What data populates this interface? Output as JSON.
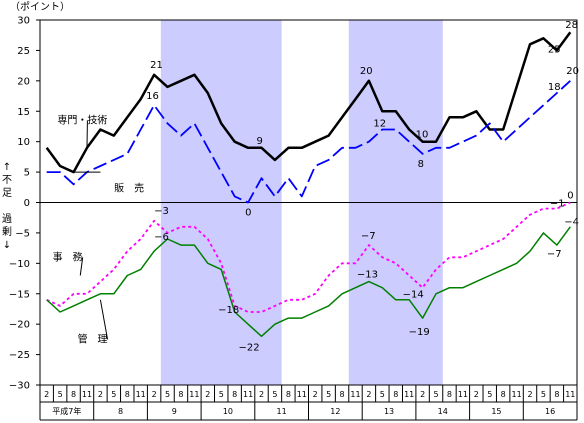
{
  "chart_data": {
    "type": "line",
    "unit_label": "（ポイント）",
    "y_axis_side_labels": {
      "top": [
        "↑",
        "不",
        "足"
      ],
      "bottom": [
        "過",
        "剰",
        "↓"
      ]
    },
    "ylim": [
      -30,
      30
    ],
    "y_ticks": [
      30,
      25,
      20,
      15,
      10,
      5,
      0,
      -5,
      -10,
      -15,
      -20,
      -25,
      -30
    ],
    "quarters": [
      "2",
      "5",
      "8",
      "11",
      "2",
      "5",
      "8",
      "11",
      "2",
      "5",
      "8",
      "11",
      "2",
      "5",
      "8",
      "11",
      "2",
      "5",
      "8",
      "11",
      "2",
      "5",
      "8",
      "11",
      "2",
      "5",
      "8",
      "11",
      "2",
      "5",
      "8",
      "11",
      "2",
      "5",
      "8",
      "11",
      "2",
      "5",
      "8",
      "11"
    ],
    "years": [
      {
        "label": "平成7年",
        "start": 0,
        "end": 3
      },
      {
        "label": "8",
        "start": 4,
        "end": 7
      },
      {
        "label": "9",
        "start": 8,
        "end": 11
      },
      {
        "label": "10",
        "start": 12,
        "end": 15
      },
      {
        "label": "11",
        "start": 16,
        "end": 19
      },
      {
        "label": "12",
        "start": 20,
        "end": 23
      },
      {
        "label": "13",
        "start": 24,
        "end": 27
      },
      {
        "label": "14",
        "start": 28,
        "end": 31
      },
      {
        "label": "15",
        "start": 32,
        "end": 35
      },
      {
        "label": "16",
        "start": 36,
        "end": 39
      }
    ],
    "shaded_ranges": [
      [
        9,
        18
      ],
      [
        23,
        30
      ]
    ],
    "series": [
      {
        "name": "専門・技術",
        "color": "#000000",
        "dash": "solid",
        "width": 2.5,
        "values": [
          9,
          6,
          5,
          9,
          12,
          11,
          14,
          17,
          21,
          19,
          20,
          21,
          18,
          13,
          10,
          9,
          9,
          7,
          9,
          9,
          10,
          11,
          14,
          17,
          20,
          15,
          15,
          12,
          10,
          10,
          14,
          14,
          15,
          12,
          12,
          19,
          26,
          27,
          25,
          28
        ]
      },
      {
        "name": "販　売",
        "color": "#0000ff",
        "dash": "longdash",
        "width": 1.8,
        "values": [
          5,
          5,
          3,
          5,
          6,
          7,
          8,
          12,
          16,
          13,
          11,
          13,
          9,
          5,
          1,
          0,
          4,
          1,
          4,
          1,
          6,
          7,
          9,
          9,
          10,
          12,
          12,
          10,
          8,
          9,
          9,
          10,
          11,
          13,
          10,
          12,
          14,
          16,
          18,
          20
        ]
      },
      {
        "name": "事　務",
        "color": "#ff00ff",
        "dash": "dotted",
        "width": 1.8,
        "values": [
          -16,
          -17,
          -15,
          -15,
          -13,
          -11,
          -8,
          -6,
          -3,
          -5,
          -4,
          -4,
          -6,
          -10,
          -17,
          -18,
          -18,
          -17,
          -16,
          -16,
          -15,
          -12,
          -10,
          -10,
          -7,
          -9,
          -10,
          -12,
          -14,
          -11,
          -9,
          -9,
          -8,
          -7,
          -6,
          -4,
          -2,
          -1,
          -1,
          0
        ]
      },
      {
        "name": "管　理",
        "color": "#008000",
        "dash": "solid",
        "width": 1.5,
        "values": [
          -16,
          -18,
          -17,
          -16,
          -15,
          -15,
          -12,
          -11,
          -8,
          -6,
          -7,
          -7,
          -10,
          -11,
          -18,
          -20,
          -22,
          -20,
          -19,
          -19,
          -18,
          -17,
          -15,
          -14,
          -13,
          -14,
          -16,
          -16,
          -19,
          -15,
          -14,
          -14,
          -13,
          -12,
          -11,
          -10,
          -8,
          -5,
          -7,
          -4
        ]
      }
    ],
    "data_labels": [
      {
        "text": "21",
        "x": 8,
        "y": 21,
        "dx": -4,
        "dy": -7
      },
      {
        "text": "16",
        "x": 8,
        "y": 16,
        "dx": -8,
        "dy": -6
      },
      {
        "text": "9",
        "x": 16,
        "y": 9,
        "dx": -5,
        "dy": -4
      },
      {
        "text": "0",
        "x": 15,
        "y": 0,
        "dx": -3,
        "dy": 13
      },
      {
        "text": "20",
        "x": 24,
        "y": 20,
        "dx": -9,
        "dy": -7
      },
      {
        "text": "12",
        "x": 25,
        "y": 12,
        "dx": -9,
        "dy": -3
      },
      {
        "text": "10",
        "x": 28,
        "y": 10,
        "dx": -7,
        "dy": -4
      },
      {
        "text": "8",
        "x": 28,
        "y": 8,
        "dx": -5,
        "dy": 13
      },
      {
        "text": "28",
        "x": 39,
        "y": 28,
        "dx": -5,
        "dy": -4
      },
      {
        "text": "25",
        "x": 38,
        "y": 25,
        "dx": -9,
        "dy": 2
      },
      {
        "text": "18",
        "x": 38,
        "y": 18,
        "dx": -9,
        "dy": -3
      },
      {
        "text": "20",
        "x": 39,
        "y": 20,
        "dx": -4,
        "dy": -7
      },
      {
        "text": "−3",
        "x": 8,
        "y": -3,
        "dx": 0,
        "dy": -7
      },
      {
        "text": "−6",
        "x": 8,
        "y": -6,
        "dx": 0,
        "dy": 1
      },
      {
        "text": "−18",
        "x": 15,
        "y": -18,
        "dx": -30,
        "dy": 1
      },
      {
        "text": "−22",
        "x": 16,
        "y": -22,
        "dx": -23,
        "dy": 14
      },
      {
        "text": "−7",
        "x": 24,
        "y": -7,
        "dx": -8,
        "dy": -6
      },
      {
        "text": "−13",
        "x": 24,
        "y": -13,
        "dx": -12,
        "dy": -4
      },
      {
        "text": "−14",
        "x": 28,
        "y": -14,
        "dx": -20,
        "dy": 10
      },
      {
        "text": "−19",
        "x": 28,
        "y": -19,
        "dx": -14,
        "dy": 17
      },
      {
        "text": "−1",
        "x": 38,
        "y": -1,
        "dx": -7,
        "dy": -2
      },
      {
        "text": "0",
        "x": 39,
        "y": 0,
        "dx": -3,
        "dy": -4
      },
      {
        "text": "−7",
        "x": 38,
        "y": -7,
        "dx": -10,
        "dy": 12
      },
      {
        "text": "−4",
        "x": 39,
        "y": -4,
        "dx": -6,
        "dy": -2
      }
    ],
    "annotations": [
      {
        "text": "専門・技術",
        "x": 1,
        "y": 13,
        "dx": 4,
        "dy": 0,
        "arrow_to": [
          3,
          9
        ]
      },
      {
        "text": "販　売",
        "x": 5,
        "y": 3,
        "dx": 7,
        "dy": 7,
        "arrow_from": [
          4,
          5
        ],
        "arrow_to": [
          2,
          5
        ]
      },
      {
        "text": "事　務",
        "x": 0.2,
        "y": -9.5,
        "dx": 10,
        "dy": 0,
        "arrow_to": [
          2.5,
          -12
        ]
      },
      {
        "text": "管　理",
        "x": 2.5,
        "y": -23,
        "dx": 4,
        "dy": 0,
        "arrow_to": [
          4,
          -16
        ]
      }
    ]
  }
}
